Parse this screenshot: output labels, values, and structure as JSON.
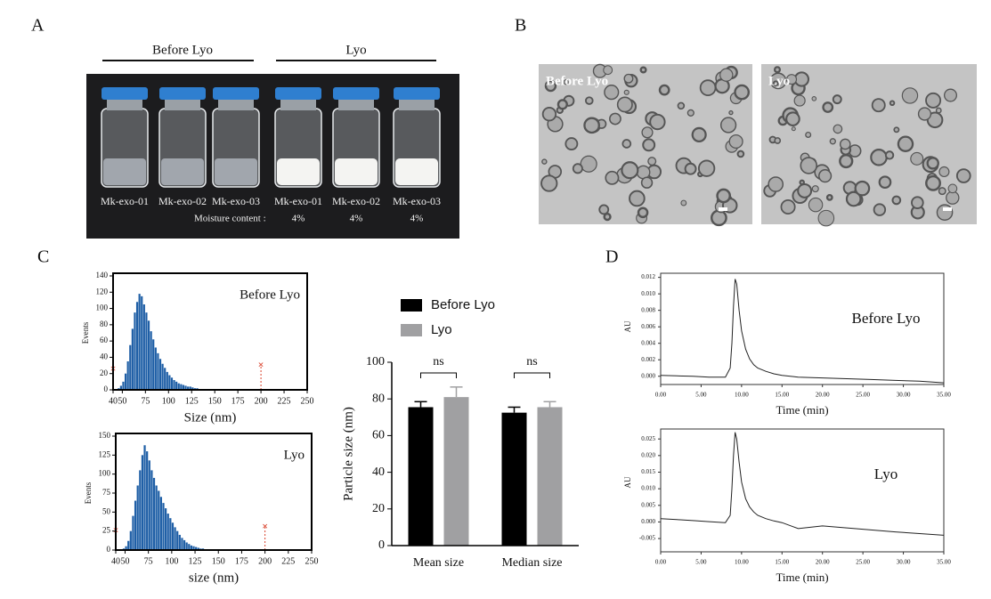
{
  "panel_labels": [
    "A",
    "B",
    "C",
    "D"
  ],
  "panel_a": {
    "groups": [
      "Before Lyo",
      "Lyo"
    ],
    "vials": [
      "Mk-exo-01",
      "Mk-exo-02",
      "Mk-exo-03",
      "Mk-exo-01",
      "Mk-exo-02",
      "Mk-exo-03"
    ],
    "moisture_label": "Moisture content :",
    "moisture": [
      "4%",
      "4%",
      "4%"
    ]
  },
  "panel_b": {
    "images": [
      "Before Lyo",
      "Lyo"
    ]
  },
  "chart_data": [
    {
      "type": "histogram",
      "annotation": "Before Lyo",
      "x_label": "Size (nm)",
      "y_label": "Events",
      "color": "#1f5fa6",
      "bins": [
        40,
        42.5,
        45,
        47.5,
        50,
        52.5,
        55,
        57.5,
        60,
        62.5,
        65,
        67.5,
        70,
        72.5,
        75,
        77.5,
        80,
        82.5,
        85,
        87.5,
        90,
        92.5,
        95,
        97.5,
        100,
        102.5,
        105,
        107.5,
        110,
        112.5,
        115,
        117.5,
        120,
        122.5,
        125,
        127.5,
        130,
        132.5,
        135,
        137.5,
        140
      ],
      "counts": [
        0,
        0,
        2,
        5,
        10,
        20,
        35,
        55,
        75,
        95,
        108,
        118,
        115,
        105,
        95,
        85,
        72,
        62,
        52,
        45,
        38,
        32,
        27,
        22,
        18,
        15,
        12,
        10,
        8,
        7,
        6,
        5,
        4,
        4,
        3,
        2,
        2,
        1,
        1,
        1
      ],
      "markers": {
        "x": [
          40,
          200
        ],
        "y": [
          25,
          30
        ],
        "color": "#d9412b"
      },
      "xlim": [
        40,
        250
      ],
      "xticks": [
        40,
        50,
        75,
        100,
        125,
        150,
        175,
        200,
        225,
        250
      ],
      "ylim": [
        0,
        140
      ],
      "yticks": [
        0,
        20,
        40,
        60,
        80,
        100,
        120,
        140
      ]
    },
    {
      "type": "histogram",
      "annotation": "Lyo",
      "x_label": "size (nm)",
      "y_label": "Events",
      "color": "#1f5fa6",
      "bins": [
        40,
        42.5,
        45,
        47.5,
        50,
        52.5,
        55,
        57.5,
        60,
        62.5,
        65,
        67.5,
        70,
        72.5,
        75,
        77.5,
        80,
        82.5,
        85,
        87.5,
        90,
        92.5,
        95,
        97.5,
        100,
        102.5,
        105,
        107.5,
        110,
        112.5,
        115,
        117.5,
        120,
        122.5,
        125,
        127.5,
        130,
        132.5,
        135,
        137.5,
        140
      ],
      "counts": [
        0,
        0,
        0,
        2,
        5,
        12,
        25,
        45,
        65,
        85,
        105,
        125,
        138,
        130,
        118,
        105,
        95,
        85,
        78,
        70,
        62,
        55,
        48,
        42,
        36,
        30,
        25,
        20,
        16,
        13,
        10,
        8,
        6,
        5,
        4,
        3,
        2,
        2,
        1,
        1
      ],
      "markers": {
        "x": [
          40,
          200
        ],
        "y": [
          25,
          30
        ],
        "color": "#d9412b"
      },
      "xlim": [
        40,
        250
      ],
      "xticks": [
        40,
        50,
        75,
        100,
        125,
        150,
        175,
        200,
        225,
        250
      ],
      "ylim": [
        0,
        150
      ],
      "yticks": [
        0,
        25,
        50,
        75,
        100,
        125,
        150
      ]
    },
    {
      "type": "bar",
      "y_label": "Particle size (nm)",
      "categories": [
        "Mean size",
        "Median size"
      ],
      "series": [
        {
          "name": "Before Lyo",
          "color": "#000000",
          "values": [
            75.5,
            72.5
          ],
          "errors": [
            3,
            3
          ]
        },
        {
          "name": "Lyo",
          "color": "#a0a0a2",
          "values": [
            81,
            75.5
          ],
          "errors": [
            5.5,
            3
          ]
        }
      ],
      "significance": [
        "ns",
        "ns"
      ],
      "ylim": [
        0,
        100
      ],
      "yticks": [
        0,
        20,
        40,
        60,
        80,
        100
      ]
    },
    {
      "type": "line",
      "annotation": "Before Lyo",
      "x_label": "Time (min)",
      "y_label": "AU",
      "color": "#222222",
      "x": [
        0,
        2,
        4,
        6,
        8,
        8.6,
        8.8,
        9.0,
        9.2,
        9.4,
        9.7,
        10,
        10.5,
        11,
        11.5,
        12,
        13,
        14,
        15,
        17,
        20,
        23,
        26,
        29,
        32,
        35
      ],
      "values": [
        0.0001,
        5e-05,
        0,
        -0.0001,
        -0.0001,
        0.001,
        0.004,
        0.0085,
        0.0118,
        0.0112,
        0.008,
        0.0055,
        0.0033,
        0.0021,
        0.0014,
        0.001,
        0.0006,
        0.0003,
        0.0001,
        -0.0001,
        -0.0002,
        -0.0003,
        -0.0004,
        -0.0005,
        -0.0006,
        -0.0008
      ],
      "xlim": [
        0,
        35
      ],
      "xticks": [
        {
          "value": 0,
          "label": "0.00"
        },
        {
          "value": 5,
          "label": "5.00"
        },
        {
          "value": 10,
          "label": "10.00"
        },
        {
          "value": 15,
          "label": "15.00"
        },
        {
          "value": 20,
          "label": "20.00"
        },
        {
          "value": 25,
          "label": "25.00"
        },
        {
          "value": 30,
          "label": "30.00"
        },
        {
          "value": 35,
          "label": "35.00"
        }
      ],
      "ylim": [
        -0.001,
        0.0125
      ],
      "yticks": [
        {
          "value": 0,
          "label": "0.000"
        },
        {
          "value": 0.002,
          "label": "0.002"
        },
        {
          "value": 0.004,
          "label": "0.004"
        },
        {
          "value": 0.006,
          "label": "0.006"
        },
        {
          "value": 0.008,
          "label": "0.008"
        },
        {
          "value": 0.01,
          "label": "0.010"
        },
        {
          "value": 0.012,
          "label": "0.012"
        }
      ]
    },
    {
      "type": "line",
      "annotation": "Lyo",
      "x_label": "Time (min)",
      "y_label": "AU",
      "color": "#222222",
      "x": [
        0,
        2,
        4,
        6,
        8,
        8.6,
        8.8,
        9.0,
        9.2,
        9.4,
        9.7,
        10,
        10.5,
        11,
        11.5,
        12,
        13,
        14,
        15,
        17,
        20,
        23,
        26,
        29,
        32,
        35
      ],
      "values": [
        0.001,
        0.0007,
        0.0004,
        0.0001,
        -0.0002,
        0.002,
        0.01,
        0.02,
        0.027,
        0.025,
        0.018,
        0.012,
        0.007,
        0.0045,
        0.003,
        0.002,
        0.001,
        0.0003,
        -0.0002,
        -0.002,
        -0.0012,
        -0.0018,
        -0.0024,
        -0.003,
        -0.0035,
        -0.004
      ],
      "xlim": [
        0,
        35
      ],
      "xticks": [
        {
          "value": 0,
          "label": "0.00"
        },
        {
          "value": 5,
          "label": "5.00"
        },
        {
          "value": 10,
          "label": "10.00"
        },
        {
          "value": 15,
          "label": "15.00"
        },
        {
          "value": 20,
          "label": "20.00"
        },
        {
          "value": 25,
          "label": "25.00"
        },
        {
          "value": 30,
          "label": "30.00"
        },
        {
          "value": 35,
          "label": "35.00"
        }
      ],
      "ylim": [
        -0.009,
        0.028
      ],
      "yticks": [
        {
          "value": -0.005,
          "label": "-0.005"
        },
        {
          "value": 0,
          "label": "0.000"
        },
        {
          "value": 0.005,
          "label": "0.005"
        },
        {
          "value": 0.01,
          "label": "0.010"
        },
        {
          "value": 0.015,
          "label": "0.015"
        },
        {
          "value": 0.02,
          "label": "0.020"
        },
        {
          "value": 0.025,
          "label": "0.025"
        }
      ]
    }
  ]
}
